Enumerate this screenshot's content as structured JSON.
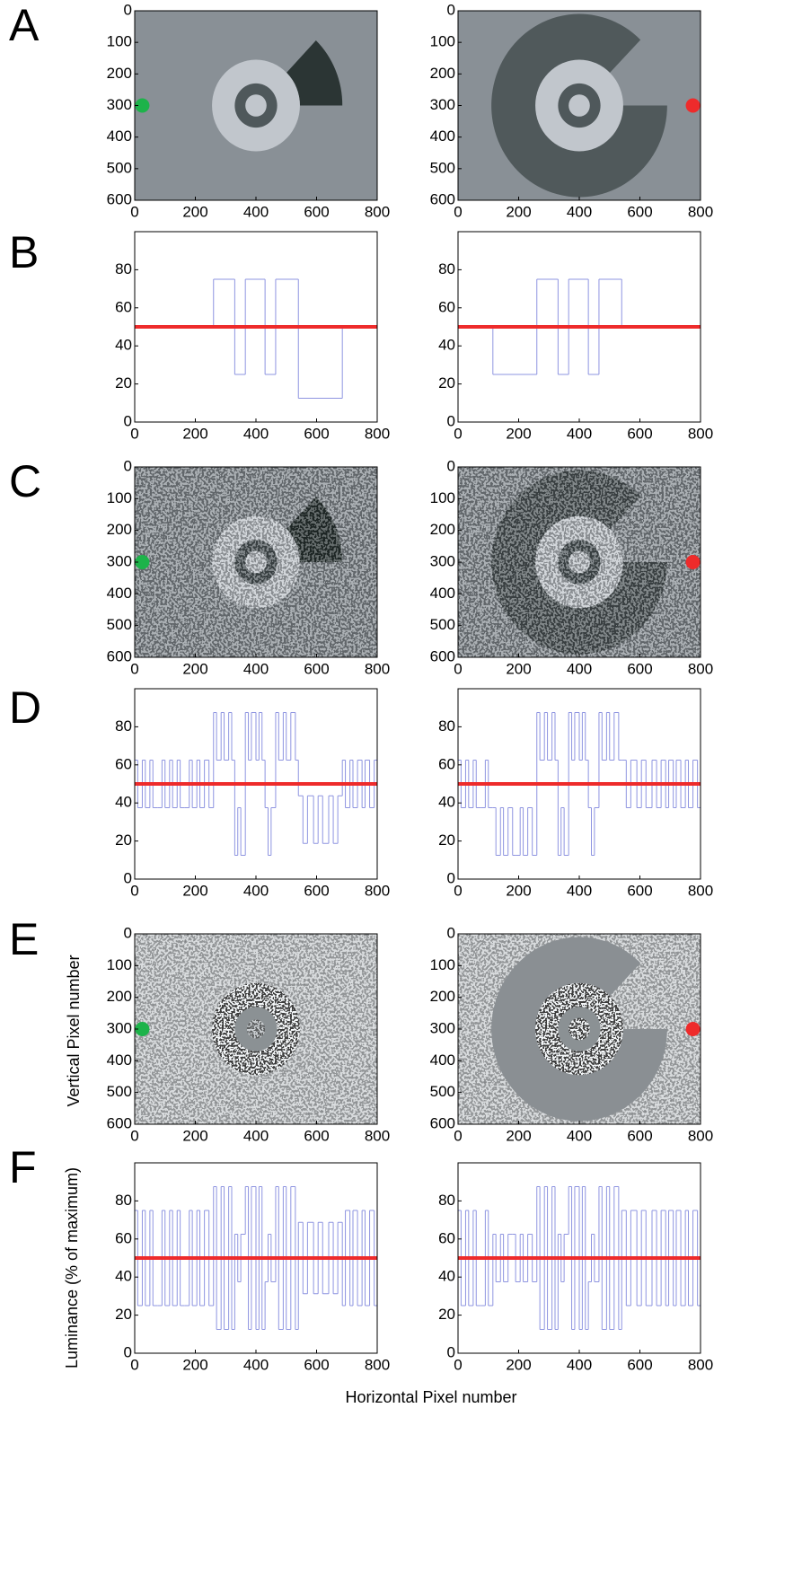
{
  "figure": {
    "xlabel": "Horizontal Pixel number",
    "ylabel_image": "Vertical Pixel number",
    "ylabel_plot": "Luminance (% of maximum)"
  },
  "chart_data": [
    {
      "type": "image",
      "panel_label": "A",
      "xlim": [
        0,
        800
      ],
      "ylim": [
        0,
        600
      ],
      "y_inverted": true,
      "xticks": [
        0,
        200,
        400,
        600,
        800
      ],
      "yticks": [
        0,
        100,
        200,
        300,
        400,
        500,
        600
      ],
      "points": [
        {
          "x": 25,
          "y": 300,
          "color": "#1db34a"
        }
      ]
    },
    {
      "type": "image",
      "xlim": [
        0,
        800
      ],
      "ylim": [
        0,
        600
      ],
      "y_inverted": true,
      "xticks": [
        0,
        200,
        400,
        600,
        800
      ],
      "yticks": [
        0,
        100,
        200,
        300,
        400,
        500,
        600
      ],
      "points": [
        {
          "x": 775,
          "y": 300,
          "color": "#ee2b2b"
        }
      ]
    },
    {
      "type": "step",
      "panel_label": "B",
      "xlim": [
        0,
        800
      ],
      "ylim": [
        0,
        100
      ],
      "xticks": [
        0,
        200,
        400,
        600,
        800
      ],
      "yticks": [
        0,
        20,
        40,
        60,
        80
      ],
      "color": "#8e94e0",
      "reference_line": {
        "y": 50,
        "color": "#ee2b2b"
      },
      "x": [
        0,
        260,
        330,
        365,
        430,
        465,
        540,
        685
      ],
      "values": [
        50,
        75,
        25,
        75,
        25,
        75,
        12.5,
        50
      ]
    },
    {
      "type": "step",
      "xlim": [
        0,
        800
      ],
      "ylim": [
        0,
        100
      ],
      "xticks": [
        0,
        200,
        400,
        600,
        800
      ],
      "yticks": [
        0,
        20,
        40,
        60,
        80
      ],
      "color": "#8e94e0",
      "reference_line": {
        "y": 50,
        "color": "#ee2b2b"
      },
      "x": [
        0,
        115,
        260,
        330,
        365,
        430,
        465,
        540
      ],
      "values": [
        50,
        25,
        75,
        25,
        75,
        25,
        75,
        50
      ]
    },
    {
      "type": "image",
      "panel_label": "C",
      "xlim": [
        0,
        800
      ],
      "ylim": [
        0,
        600
      ],
      "y_inverted": true,
      "xticks": [
        0,
        200,
        400,
        600,
        800
      ],
      "yticks": [
        0,
        100,
        200,
        300,
        400,
        500,
        600
      ],
      "points": [
        {
          "x": 25,
          "y": 300,
          "color": "#1db34a"
        }
      ]
    },
    {
      "type": "image",
      "xlim": [
        0,
        800
      ],
      "ylim": [
        0,
        600
      ],
      "y_inverted": true,
      "xticks": [
        0,
        200,
        400,
        600,
        800
      ],
      "yticks": [
        0,
        100,
        200,
        300,
        400,
        500,
        600
      ],
      "points": [
        {
          "x": 775,
          "y": 300,
          "color": "#ee2b2b"
        }
      ]
    },
    {
      "type": "step",
      "panel_label": "D",
      "xlim": [
        0,
        800
      ],
      "ylim": [
        0,
        100
      ],
      "xticks": [
        0,
        200,
        400,
        600,
        800
      ],
      "yticks": [
        0,
        20,
        40,
        60,
        80
      ],
      "color": "#8e94e0",
      "reference_line": {
        "y": 50,
        "color": "#ee2b2b"
      },
      "x": [
        0,
        10,
        25,
        35,
        50,
        60,
        75,
        90,
        100,
        115,
        125,
        140,
        150,
        165,
        180,
        190,
        205,
        215,
        230,
        245,
        260,
        270,
        285,
        295,
        310,
        320,
        330,
        340,
        350,
        365,
        375,
        385,
        400,
        410,
        420,
        430,
        440,
        450,
        465,
        475,
        490,
        500,
        515,
        530,
        540,
        555,
        570,
        590,
        605,
        620,
        640,
        655,
        670,
        685,
        695,
        710,
        720,
        735,
        750,
        760,
        775,
        790
      ],
      "values": [
        62.5,
        37.5,
        62.5,
        37.5,
        62.5,
        37.5,
        37.5,
        62.5,
        37.5,
        62.5,
        37.5,
        62.5,
        37.5,
        37.5,
        62.5,
        37.5,
        62.5,
        37.5,
        62.5,
        37.5,
        87.5,
        62.5,
        87.5,
        62.5,
        87.5,
        62.5,
        12.5,
        37.5,
        12.5,
        87.5,
        62.5,
        87.5,
        62.5,
        87.5,
        62.5,
        37.5,
        12.5,
        37.5,
        87.5,
        62.5,
        87.5,
        62.5,
        87.5,
        62.5,
        43.75,
        18.75,
        43.75,
        18.75,
        43.75,
        18.75,
        43.75,
        18.75,
        43.75,
        62.5,
        37.5,
        62.5,
        37.5,
        62.5,
        37.5,
        62.5,
        37.5,
        62.5
      ]
    },
    {
      "type": "step",
      "xlim": [
        0,
        800
      ],
      "ylim": [
        0,
        100
      ],
      "xticks": [
        0,
        200,
        400,
        600,
        800
      ],
      "yticks": [
        0,
        20,
        40,
        60,
        80
      ],
      "color": "#8e94e0",
      "reference_line": {
        "y": 50,
        "color": "#ee2b2b"
      },
      "x": [
        0,
        10,
        25,
        35,
        50,
        60,
        75,
        90,
        100,
        115,
        125,
        140,
        150,
        165,
        180,
        190,
        205,
        215,
        230,
        245,
        260,
        270,
        285,
        295,
        310,
        320,
        330,
        340,
        350,
        365,
        375,
        385,
        400,
        410,
        420,
        430,
        440,
        450,
        465,
        475,
        490,
        500,
        515,
        530,
        540,
        555,
        570,
        590,
        605,
        620,
        640,
        655,
        670,
        685,
        695,
        710,
        720,
        735,
        750,
        760,
        775,
        790
      ],
      "values": [
        62.5,
        37.5,
        62.5,
        37.5,
        62.5,
        37.5,
        37.5,
        62.5,
        37.5,
        37.5,
        12.5,
        37.5,
        12.5,
        37.5,
        12.5,
        12.5,
        37.5,
        12.5,
        37.5,
        12.5,
        87.5,
        62.5,
        87.5,
        62.5,
        87.5,
        62.5,
        12.5,
        37.5,
        12.5,
        87.5,
        62.5,
        87.5,
        62.5,
        87.5,
        62.5,
        37.5,
        12.5,
        37.5,
        87.5,
        62.5,
        87.5,
        62.5,
        87.5,
        62.5,
        62.5,
        37.5,
        62.5,
        37.5,
        62.5,
        37.5,
        62.5,
        37.5,
        62.5,
        37.5,
        62.5,
        37.5,
        62.5,
        37.5,
        62.5,
        37.5,
        62.5,
        37.5
      ]
    },
    {
      "type": "image",
      "panel_label": "E",
      "xlim": [
        0,
        800
      ],
      "ylim": [
        0,
        600
      ],
      "y_inverted": true,
      "xticks": [
        0,
        200,
        400,
        600,
        800
      ],
      "yticks": [
        0,
        100,
        200,
        300,
        400,
        500,
        600
      ],
      "points": [
        {
          "x": 25,
          "y": 300,
          "color": "#1db34a"
        }
      ]
    },
    {
      "type": "image",
      "xlim": [
        0,
        800
      ],
      "ylim": [
        0,
        600
      ],
      "y_inverted": true,
      "xticks": [
        0,
        200,
        400,
        600,
        800
      ],
      "yticks": [
        0,
        100,
        200,
        300,
        400,
        500,
        600
      ],
      "points": [
        {
          "x": 775,
          "y": 300,
          "color": "#ee2b2b"
        }
      ]
    },
    {
      "type": "step",
      "panel_label": "F",
      "xlim": [
        0,
        800
      ],
      "ylim": [
        0,
        100
      ],
      "xticks": [
        0,
        200,
        400,
        600,
        800
      ],
      "yticks": [
        0,
        20,
        40,
        60,
        80
      ],
      "color": "#8e94e0",
      "reference_line": {
        "y": 50,
        "color": "#ee2b2b"
      },
      "x": [
        0,
        10,
        25,
        35,
        50,
        60,
        75,
        90,
        100,
        115,
        125,
        140,
        150,
        165,
        180,
        190,
        205,
        215,
        230,
        245,
        260,
        270,
        285,
        295,
        310,
        320,
        330,
        340,
        350,
        365,
        375,
        385,
        400,
        410,
        420,
        430,
        440,
        450,
        465,
        475,
        490,
        500,
        515,
        530,
        540,
        555,
        570,
        590,
        605,
        620,
        640,
        655,
        670,
        685,
        695,
        710,
        720,
        735,
        750,
        760,
        775,
        790
      ],
      "values": [
        75,
        25,
        75,
        25,
        75,
        25,
        25,
        75,
        25,
        75,
        25,
        75,
        25,
        25,
        75,
        25,
        75,
        25,
        75,
        25,
        87.5,
        12.5,
        87.5,
        12.5,
        87.5,
        12.5,
        62.5,
        37.5,
        62.5,
        87.5,
        12.5,
        87.5,
        12.5,
        87.5,
        12.5,
        37.5,
        62.5,
        37.5,
        87.5,
        12.5,
        87.5,
        12.5,
        87.5,
        12.5,
        68.75,
        31.25,
        68.75,
        31.25,
        68.75,
        31.25,
        68.75,
        31.25,
        68.75,
        25,
        75,
        25,
        75,
        25,
        75,
        25,
        75,
        25
      ]
    },
    {
      "type": "step",
      "xlim": [
        0,
        800
      ],
      "ylim": [
        0,
        100
      ],
      "xticks": [
        0,
        200,
        400,
        600,
        800
      ],
      "yticks": [
        0,
        20,
        40,
        60,
        80
      ],
      "color": "#8e94e0",
      "reference_line": {
        "y": 50,
        "color": "#ee2b2b"
      },
      "x": [
        0,
        10,
        25,
        35,
        50,
        60,
        75,
        90,
        100,
        115,
        125,
        140,
        150,
        165,
        180,
        190,
        205,
        215,
        230,
        245,
        260,
        270,
        285,
        295,
        310,
        320,
        330,
        340,
        350,
        365,
        375,
        385,
        400,
        410,
        420,
        430,
        440,
        450,
        465,
        475,
        490,
        500,
        515,
        530,
        540,
        555,
        570,
        590,
        605,
        620,
        640,
        655,
        670,
        685,
        695,
        710,
        720,
        735,
        750,
        760,
        775,
        790
      ],
      "values": [
        75,
        25,
        75,
        25,
        75,
        25,
        25,
        75,
        25,
        62.5,
        37.5,
        62.5,
        37.5,
        62.5,
        62.5,
        37.5,
        62.5,
        37.5,
        62.5,
        37.5,
        87.5,
        12.5,
        87.5,
        12.5,
        87.5,
        12.5,
        62.5,
        37.5,
        62.5,
        87.5,
        12.5,
        87.5,
        12.5,
        87.5,
        12.5,
        37.5,
        62.5,
        37.5,
        87.5,
        12.5,
        87.5,
        12.5,
        87.5,
        12.5,
        75,
        25,
        75,
        25,
        75,
        25,
        75,
        25,
        75,
        25,
        75,
        25,
        75,
        25,
        75,
        25,
        75,
        25
      ]
    }
  ]
}
